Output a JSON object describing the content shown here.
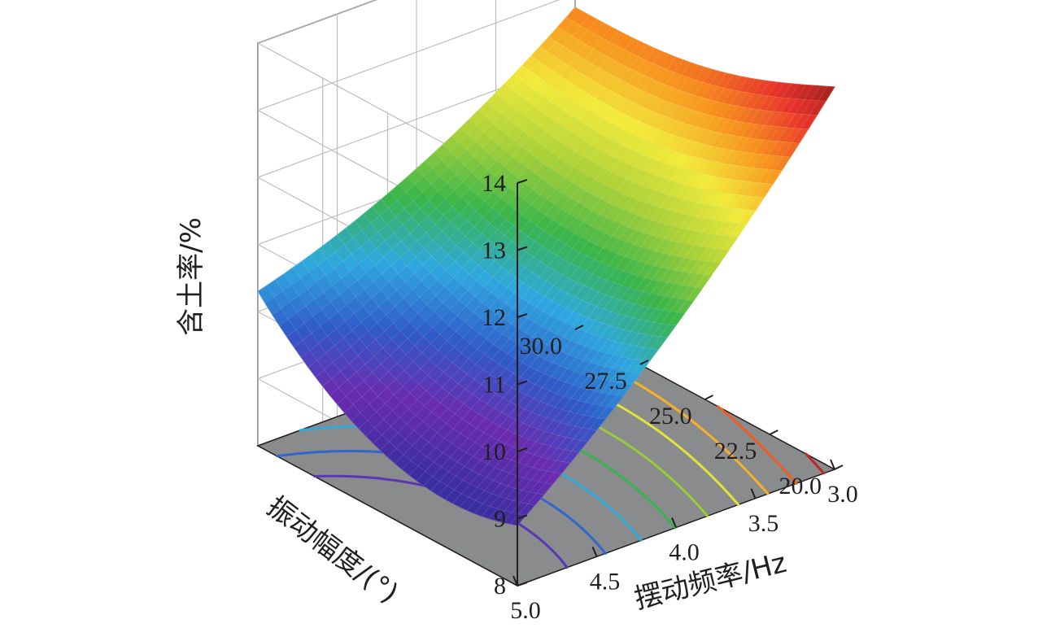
{
  "chart_data": {
    "type": "surface",
    "zlabel": "含土率/%",
    "xlabel": "摆动频率/Hz",
    "ylabel": "振动幅度/(°)",
    "z_ticks": [
      "8",
      "9",
      "10",
      "11",
      "12",
      "13",
      "14"
    ],
    "x_ticks": [
      "3.0",
      "3.5",
      "4.0",
      "4.5",
      "5.0"
    ],
    "y_ticks": [
      "20.0",
      "22.5",
      "25.0",
      "27.5",
      "30.0"
    ],
    "zlim": [
      8,
      14
    ],
    "xlim": [
      3.0,
      5.0
    ],
    "ylim": [
      20.0,
      30.0
    ],
    "corner_values": [
      {
        "frequency": 3.0,
        "amplitude": 20.0,
        "soil_content": 13.7
      },
      {
        "frequency": 3.0,
        "amplitude": 30.0,
        "soil_content": 12.8
      },
      {
        "frequency": 5.0,
        "amplitude": 20.0,
        "soil_content": 8.9
      },
      {
        "frequency": 5.0,
        "amplitude": 30.0,
        "soil_content": 10.3
      }
    ],
    "minimum": {
      "frequency": 4.6,
      "amplitude": 23.0,
      "soil_content": 8.9
    },
    "grid": true,
    "contour_projection": true,
    "colormap": [
      "#3b2ea0",
      "#6a2bb0",
      "#2f5bc8",
      "#2fa8e0",
      "#39b54a",
      "#a8d038",
      "#f2ea3a",
      "#f7941d",
      "#e8332a",
      "#8b1a1a"
    ]
  }
}
